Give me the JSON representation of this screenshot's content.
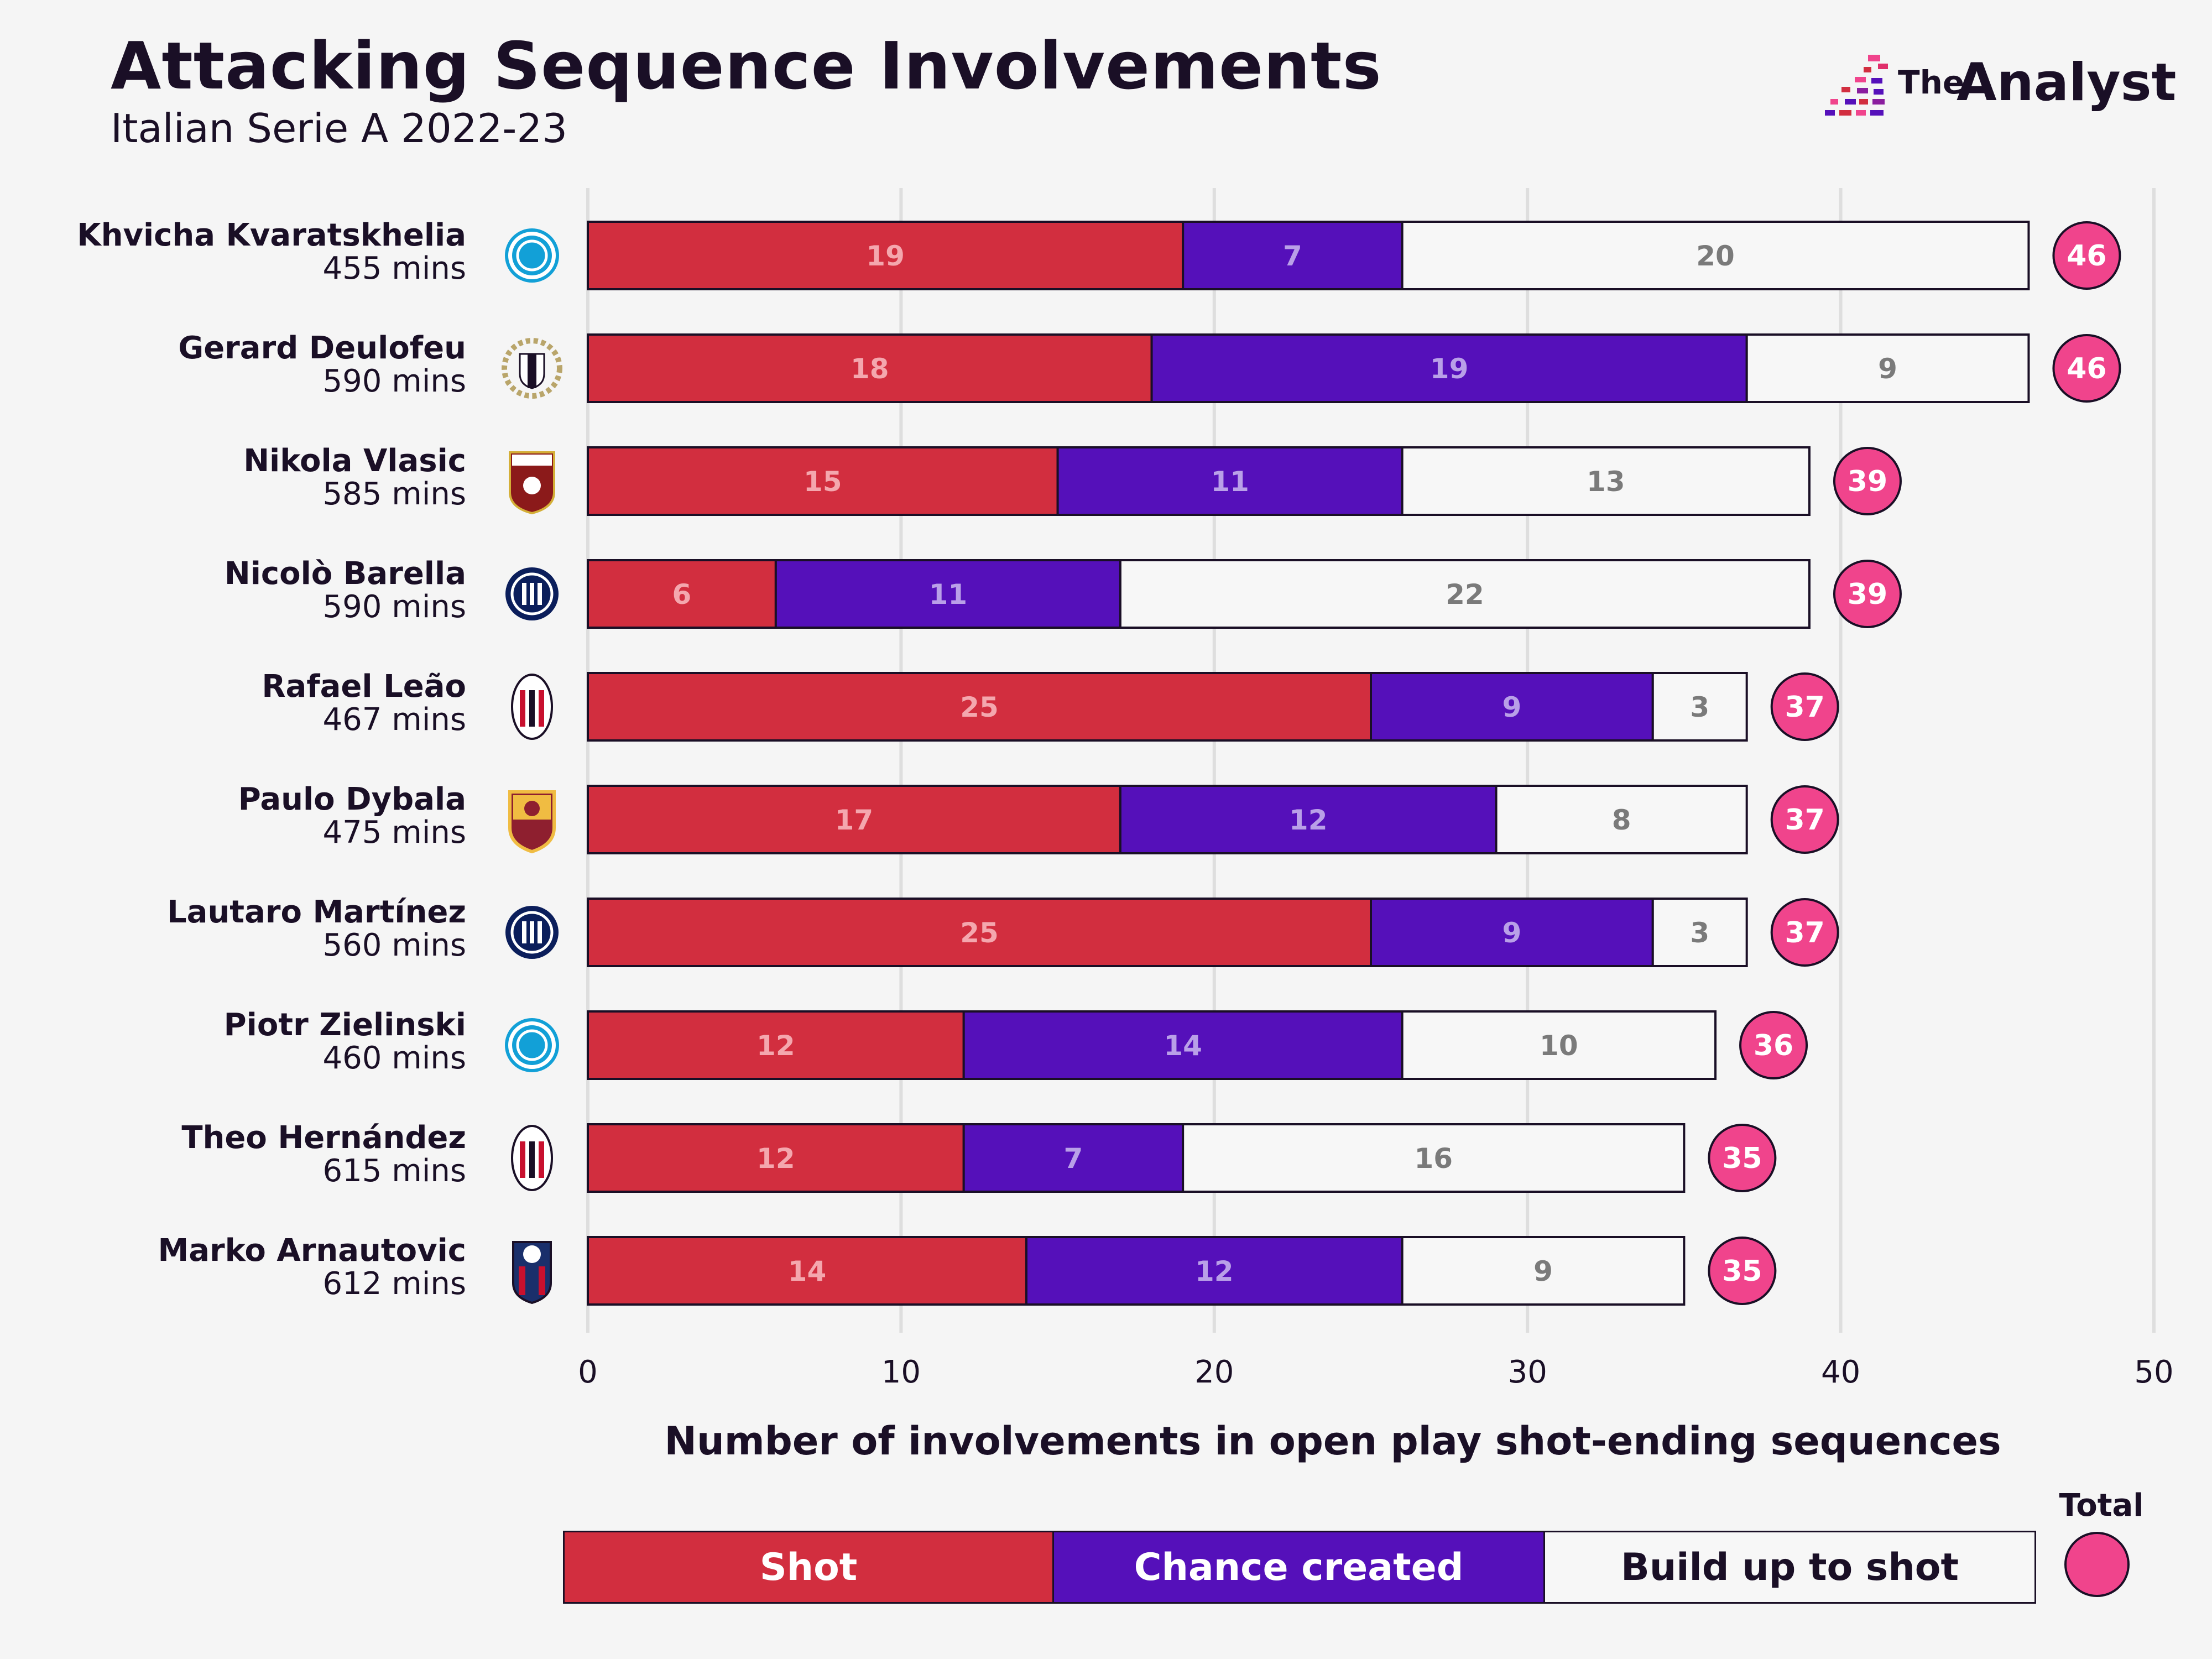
{
  "header": {
    "title": "Attacking Sequence Involvements",
    "subtitle": "Italian Serie A 2022-23"
  },
  "brand": {
    "logo_the": "The",
    "logo_word": "Analyst"
  },
  "colors": {
    "shot": "#d22e3f",
    "chance": "#5510ba",
    "buildup": "#f7f7f7",
    "total": "#f0448c",
    "outline": "#1a0f26",
    "grid": "#dedede",
    "shot_text": "#f4a7ae",
    "chance_text": "#b9a0e8",
    "buildup_text": "#7a7a7a"
  },
  "chart_data": {
    "type": "bar",
    "orientation": "horizontal",
    "stacked": true,
    "title": "Attacking Sequence Involvements",
    "subtitle": "Italian Serie A 2022-23",
    "xlabel": "Number of involvements in open play shot-ending sequences",
    "ylabel": "",
    "xlim": [
      0,
      50
    ],
    "xticks": [
      0,
      10,
      20,
      30,
      40,
      50
    ],
    "grid": true,
    "categories": [
      "Khvicha Kvaratskhelia",
      "Gerard Deulofeu",
      "Nikola Vlasic",
      "Nicolò Barella",
      "Rafael Leão",
      "Paulo Dybala",
      "Lautaro Martínez",
      "Piotr Zielinski",
      "Theo Hernández",
      "Marko Arnautovic"
    ],
    "minutes": [
      "455 mins",
      "590 mins",
      "585 mins",
      "590 mins",
      "467 mins",
      "475 mins",
      "560 mins",
      "460 mins",
      "615 mins",
      "612 mins"
    ],
    "clubs": [
      "napoli",
      "udinese",
      "torino",
      "inter",
      "milan",
      "roma",
      "inter",
      "napoli",
      "milan",
      "bologna"
    ],
    "series": [
      {
        "name": "Shot",
        "values": [
          19,
          18,
          15,
          6,
          25,
          17,
          25,
          12,
          12,
          14
        ]
      },
      {
        "name": "Chance created",
        "values": [
          7,
          19,
          11,
          11,
          9,
          12,
          9,
          14,
          7,
          12
        ]
      },
      {
        "name": "Build up to shot",
        "values": [
          20,
          9,
          13,
          22,
          3,
          8,
          3,
          10,
          16,
          9
        ]
      }
    ],
    "totals": [
      46,
      46,
      39,
      39,
      37,
      37,
      37,
      36,
      35,
      35
    ],
    "legend": {
      "shot": "Shot",
      "chance": "Chance created",
      "buildup": "Build up to shot",
      "total": "Total",
      "placement": "bottom"
    }
  }
}
